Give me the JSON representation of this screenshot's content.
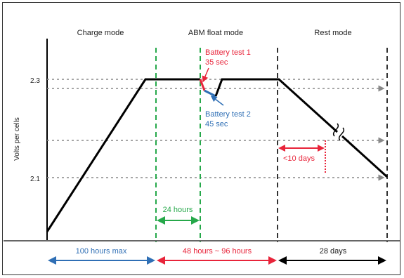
{
  "diagram": {
    "mode_labels": {
      "charge": "Charge mode",
      "float": "ABM float mode",
      "rest": "Rest mode"
    },
    "y_axis": {
      "label": "Volts per cells",
      "ticks": [
        "2.3",
        "2.1"
      ]
    },
    "annotations": {
      "test1_line1": "Battery test 1",
      "test1_line2": "35 sec",
      "test2_line1": "Battery test 2",
      "test2_line2": "45 sec",
      "gap": "24 hours",
      "self_discharge": "<10 days"
    },
    "spans": {
      "charge": "100 hours max",
      "float": "48 hours ~ 96 hours",
      "rest": "28 days"
    },
    "colors": {
      "line": "#000000",
      "red": "#e8243a",
      "blue": "#2f6fb5",
      "green": "#26a84a",
      "gray": "#888888",
      "dark_dash": "#333333"
    }
  }
}
